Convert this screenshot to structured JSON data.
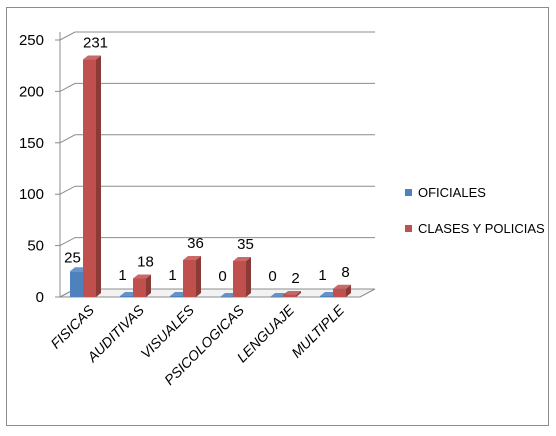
{
  "chart_data": {
    "type": "bar",
    "title": "",
    "xlabel": "",
    "ylabel": "",
    "ylim": [
      0,
      250
    ],
    "yticks": [
      0,
      50,
      100,
      150,
      200,
      250
    ],
    "grid": true,
    "legend_position": "right",
    "categories": [
      "FISICAS",
      "AUDITIVAS",
      "VISUALES",
      "PSICOLOGICAS",
      "LENGUAJE",
      "MULTIPLE"
    ],
    "series": [
      {
        "name": "OFICIALES",
        "values": [
          25,
          1,
          1,
          0,
          0,
          1
        ],
        "color": "#4f81bd"
      },
      {
        "name": "CLASES Y POLICIAS",
        "values": [
          231,
          18,
          36,
          35,
          2,
          8
        ],
        "color": "#c0504d"
      }
    ]
  }
}
